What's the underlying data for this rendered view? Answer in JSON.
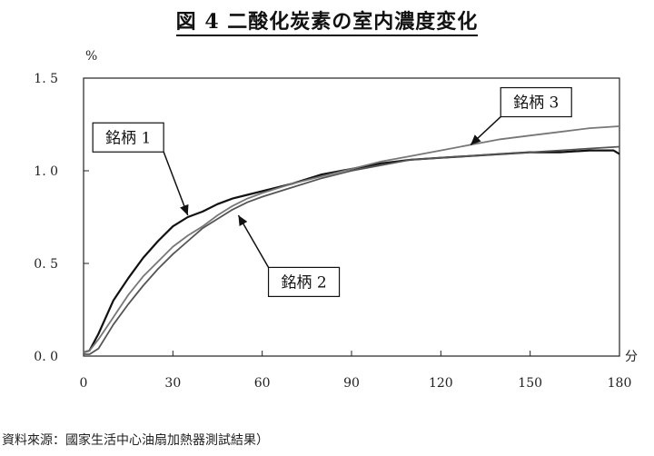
{
  "title": "図 4 二酸化炭素の室内濃度変化",
  "source": "資料來源：國家生活中心油扇加熱器測試結果）",
  "chart_data": {
    "type": "line",
    "title": "図 4 二酸化炭素の室内濃度変化",
    "xlabel": "分",
    "ylabel": "%",
    "xlim": [
      0,
      180
    ],
    "ylim": [
      0,
      1.5
    ],
    "xticks": [
      0,
      30,
      60,
      90,
      120,
      150,
      180
    ],
    "yticks": [
      0.0,
      0.5,
      1.0,
      1.5
    ],
    "xtick_labels": [
      "0",
      "30",
      "60",
      "90",
      "120",
      "150",
      "180"
    ],
    "ytick_labels": [
      "0. 0",
      "0. 5",
      "1. 0",
      "1. 5"
    ],
    "grid": false,
    "series": [
      {
        "name": "銘柄 1",
        "color": "#111111",
        "x": [
          0,
          2,
          5,
          10,
          15,
          20,
          25,
          30,
          35,
          40,
          45,
          50,
          55,
          60,
          70,
          80,
          90,
          100,
          110,
          120,
          130,
          140,
          150,
          160,
          170,
          178,
          180
        ],
        "y": [
          0.02,
          0.03,
          0.12,
          0.3,
          0.42,
          0.53,
          0.62,
          0.7,
          0.75,
          0.78,
          0.82,
          0.85,
          0.87,
          0.89,
          0.93,
          0.98,
          1.01,
          1.04,
          1.06,
          1.07,
          1.08,
          1.09,
          1.1,
          1.1,
          1.11,
          1.11,
          1.09
        ]
      },
      {
        "name": "銘柄 2",
        "color": "#555555",
        "x": [
          0,
          2,
          5,
          10,
          15,
          20,
          25,
          30,
          35,
          40,
          45,
          50,
          55,
          60,
          70,
          80,
          90,
          100,
          110,
          120,
          130,
          140,
          150,
          160,
          170,
          180
        ],
        "y": [
          0.01,
          0.01,
          0.04,
          0.17,
          0.28,
          0.38,
          0.47,
          0.55,
          0.62,
          0.69,
          0.74,
          0.79,
          0.83,
          0.86,
          0.91,
          0.96,
          1.0,
          1.03,
          1.06,
          1.07,
          1.08,
          1.09,
          1.1,
          1.11,
          1.12,
          1.13
        ]
      },
      {
        "name": "銘柄 3",
        "color": "#777777",
        "x": [
          0,
          2,
          5,
          10,
          15,
          20,
          25,
          30,
          35,
          40,
          45,
          50,
          55,
          60,
          70,
          80,
          90,
          100,
          110,
          120,
          130,
          140,
          150,
          160,
          170,
          180
        ],
        "y": [
          0.02,
          0.03,
          0.09,
          0.21,
          0.33,
          0.43,
          0.51,
          0.59,
          0.65,
          0.7,
          0.76,
          0.81,
          0.85,
          0.88,
          0.93,
          0.97,
          1.01,
          1.05,
          1.08,
          1.11,
          1.14,
          1.17,
          1.19,
          1.21,
          1.23,
          1.24
        ]
      }
    ],
    "annotations": [
      {
        "text": "銘柄 1",
        "series": 0,
        "arrow_to": [
          35,
          0.76
        ],
        "label_at": [
          15,
          1.18
        ]
      },
      {
        "text": "銘柄 2",
        "series": 1,
        "arrow_to": [
          52,
          0.76
        ],
        "label_at": [
          74,
          0.4
        ]
      },
      {
        "text": "銘柄 3",
        "series": 2,
        "arrow_to": [
          130,
          1.14
        ],
        "label_at": [
          152,
          1.37
        ]
      }
    ]
  }
}
